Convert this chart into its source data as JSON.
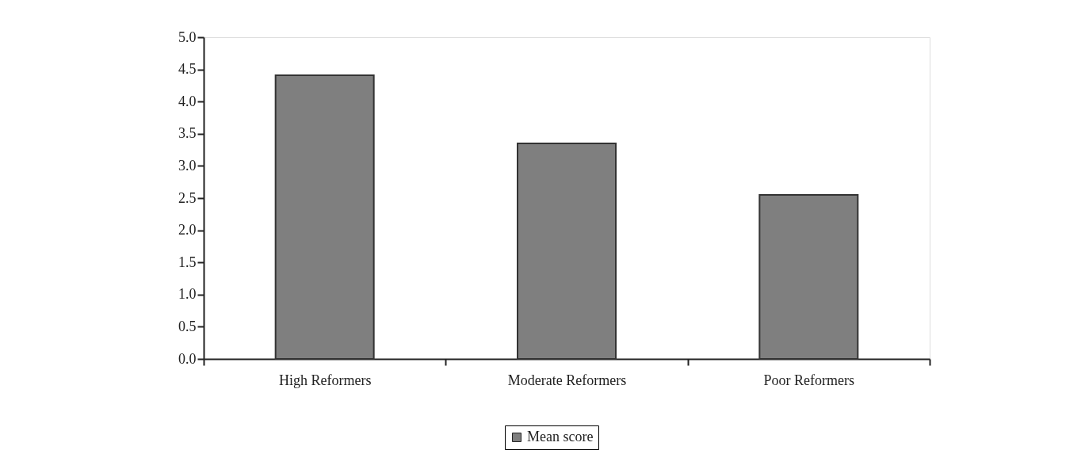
{
  "chart_data": {
    "type": "bar",
    "categories": [
      "High Reformers",
      "Moderate Reformers",
      "Poor Reformers"
    ],
    "series": [
      {
        "name": "Mean score",
        "color": "#7f7f7f",
        "values": [
          4.41,
          3.35,
          2.55
        ]
      }
    ],
    "ylim": [
      0,
      5
    ],
    "yticks": [
      {
        "value": 0,
        "label": "0.0"
      },
      {
        "value": 0.5,
        "label": "0.5"
      },
      {
        "value": 1,
        "label": "1.0"
      },
      {
        "value": 1.5,
        "label": "1.5"
      },
      {
        "value": 2,
        "label": "2.0"
      },
      {
        "value": 2.5,
        "label": "2.5"
      },
      {
        "value": 3,
        "label": "3.0"
      },
      {
        "value": 3.5,
        "label": "3.5"
      },
      {
        "value": 4,
        "label": "4.0"
      },
      {
        "value": 4.5,
        "label": "4.5"
      },
      {
        "value": 5,
        "label": "5.0"
      }
    ],
    "grid": false,
    "legend": "bottom"
  }
}
